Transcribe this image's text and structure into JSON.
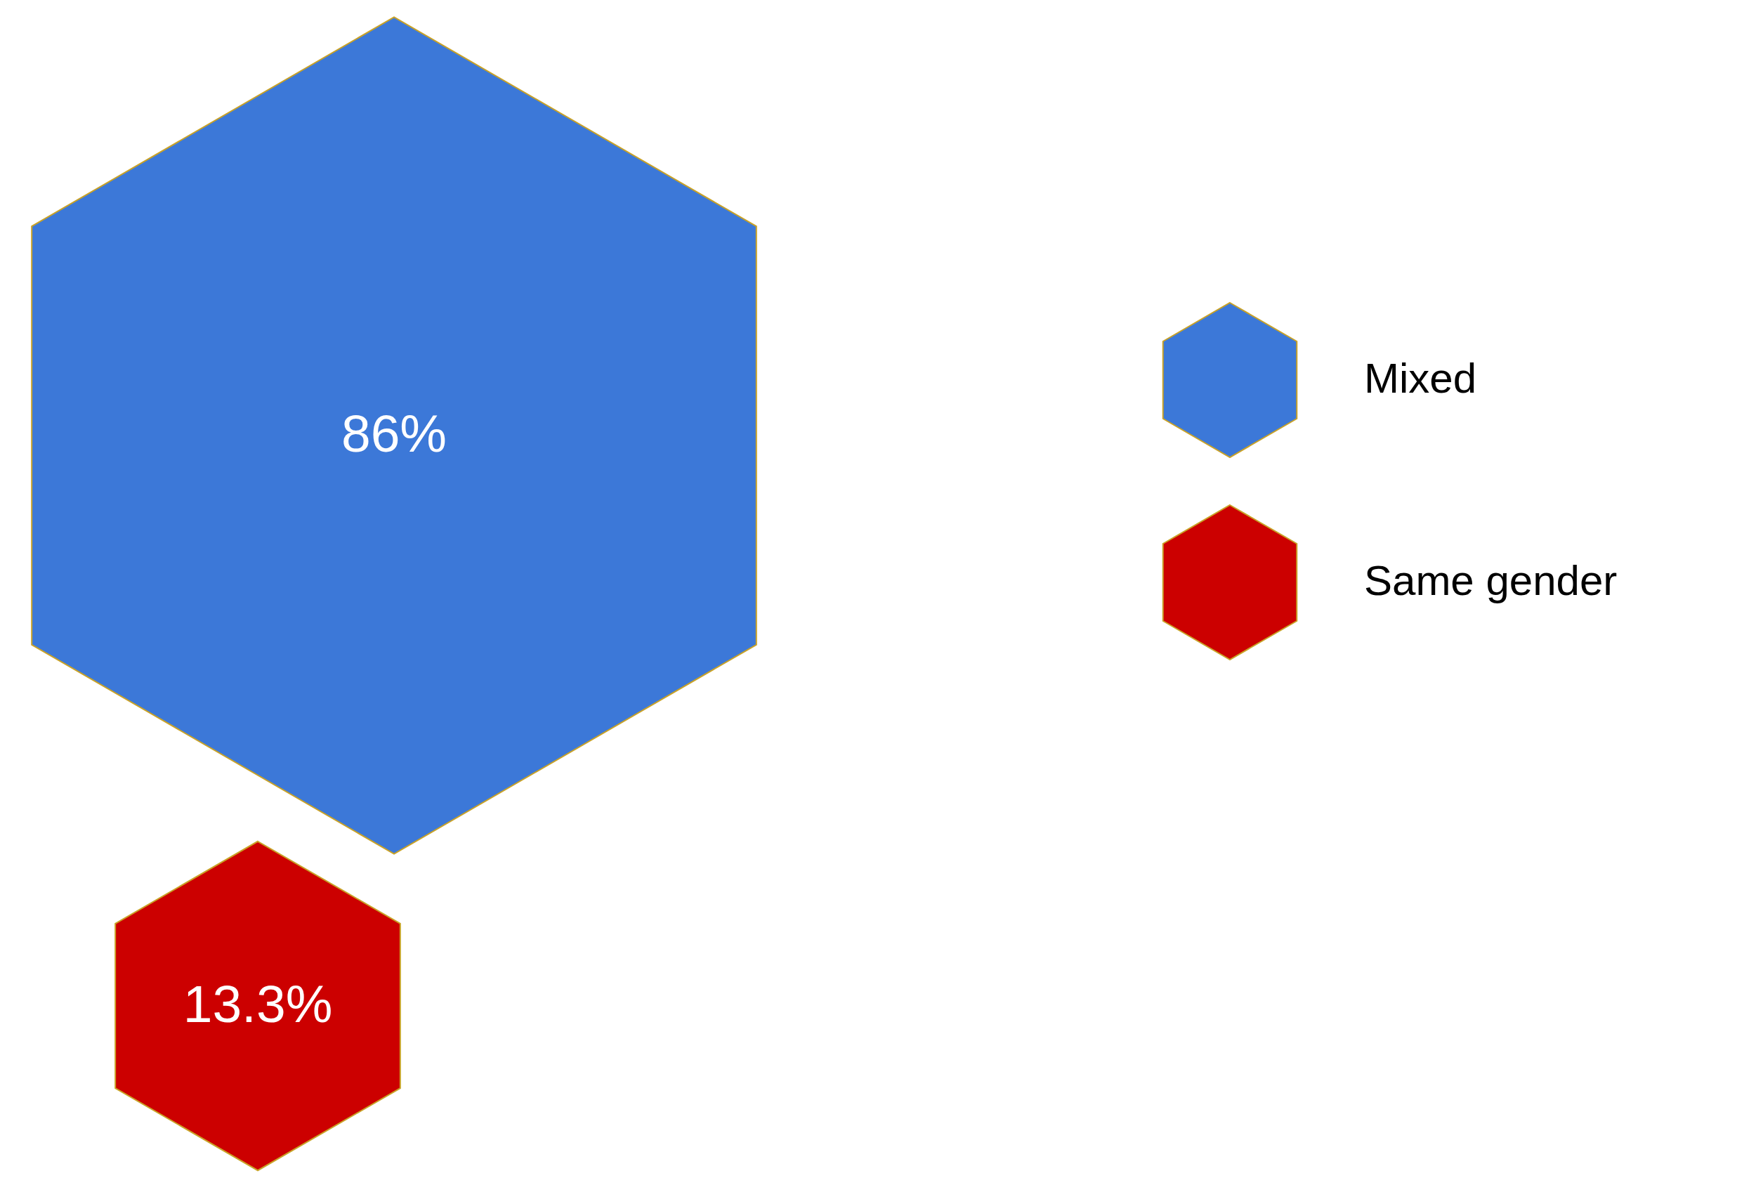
{
  "chart_data": {
    "type": "other",
    "categories": [
      "Mixed",
      "Same gender"
    ],
    "values": [
      86,
      13.3
    ],
    "value_labels": [
      "86%",
      "13.3%"
    ],
    "colors": [
      "#3c78d8",
      "#cc0000"
    ]
  }
}
